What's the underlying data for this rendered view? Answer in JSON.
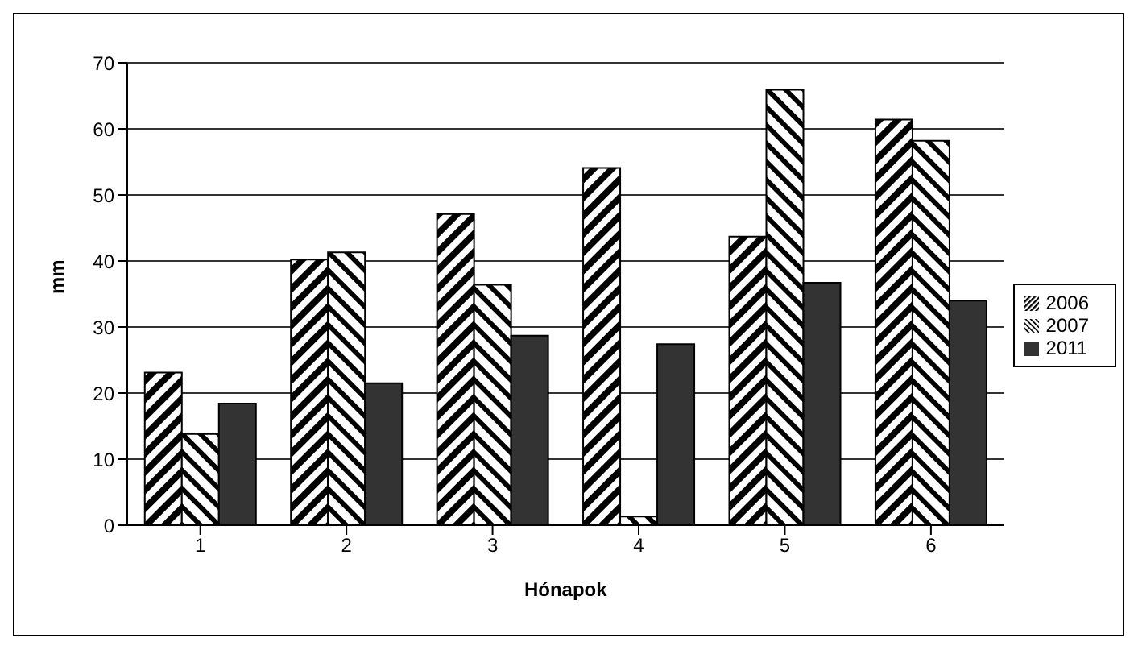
{
  "chart_data": {
    "type": "bar",
    "xlabel": "Hónapok",
    "ylabel": "mm",
    "categories": [
      "1",
      "2",
      "3",
      "4",
      "5",
      "6"
    ],
    "series": [
      {
        "name": "2006",
        "color": "#000000",
        "values": [
          23.1,
          40.2,
          47.1,
          54.1,
          43.7,
          61.4
        ]
      },
      {
        "name": "2007",
        "color": "#000000",
        "values": [
          13.8,
          41.3,
          36.4,
          1.3,
          65.9,
          58.2
        ]
      },
      {
        "name": "2011",
        "color": "#333333",
        "values": [
          18.4,
          21.5,
          28.7,
          27.4,
          36.7,
          34.0
        ]
      }
    ],
    "ylim": [
      0,
      70
    ],
    "yticks": [
      0,
      10,
      20,
      30,
      40,
      50,
      60,
      70
    ],
    "grid": "y",
    "legend": "right"
  }
}
